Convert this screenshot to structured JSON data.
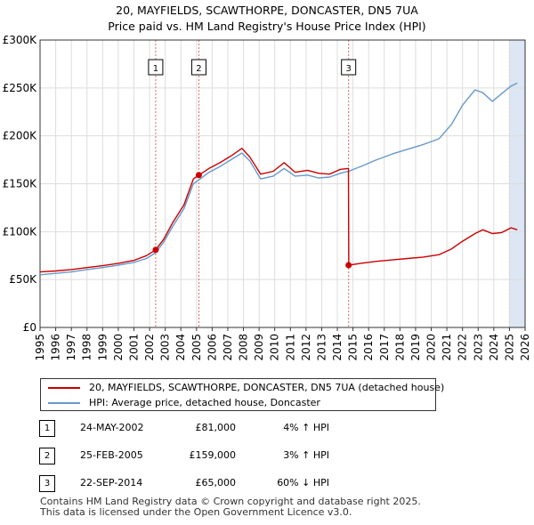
{
  "title_line1": "20, MAYFIELDS, SCAWTHORPE, DONCASTER, DN5 7UA",
  "title_line2": "Price paid vs. HM Land Registry's House Price Index (HPI)",
  "colors": {
    "price": "#cc0000",
    "hpi": "#6699cc",
    "grid": "#dddddd",
    "marker_line": "#e06666",
    "band": "#dde6f3"
  },
  "chart_data": {
    "type": "line",
    "title": "Price paid vs. HM Land Registry's House Price Index (HPI)",
    "xlabel": "",
    "ylabel": "",
    "xlim": [
      1995,
      2026
    ],
    "ylim": [
      0,
      300000
    ],
    "y_ticks": [
      {
        "value": 0,
        "label": "£0"
      },
      {
        "value": 50000,
        "label": "£50K"
      },
      {
        "value": 100000,
        "label": "£100K"
      },
      {
        "value": 150000,
        "label": "£150K"
      },
      {
        "value": 200000,
        "label": "£200K"
      },
      {
        "value": 250000,
        "label": "£250K"
      },
      {
        "value": 300000,
        "label": "£300K"
      }
    ],
    "x_ticks": [
      "1995",
      "1996",
      "1997",
      "1998",
      "1999",
      "2000",
      "2001",
      "2002",
      "2003",
      "2004",
      "2005",
      "2006",
      "2007",
      "2008",
      "2009",
      "2010",
      "2011",
      "2012",
      "2013",
      "2014",
      "2015",
      "2016",
      "2017",
      "2018",
      "2019",
      "2020",
      "2021",
      "2022",
      "2023",
      "2024",
      "2025",
      "2026"
    ],
    "series": [
      {
        "name": "20, MAYFIELDS, SCAWTHORPE, DONCASTER, DN5 7UA (detached house)",
        "color": "#cc0000",
        "points": [
          [
            1995.0,
            58000
          ],
          [
            1996.0,
            59000
          ],
          [
            1997.0,
            60500
          ],
          [
            1998.0,
            62500
          ],
          [
            1999.0,
            64500
          ],
          [
            2000.0,
            67000
          ],
          [
            2001.0,
            70000
          ],
          [
            2001.8,
            75000
          ],
          [
            2002.39,
            81000
          ],
          [
            2002.9,
            92000
          ],
          [
            2003.5,
            110000
          ],
          [
            2004.2,
            128000
          ],
          [
            2004.8,
            155000
          ],
          [
            2005.15,
            159000
          ],
          [
            2005.8,
            166000
          ],
          [
            2006.5,
            172000
          ],
          [
            2007.3,
            180000
          ],
          [
            2007.9,
            187000
          ],
          [
            2008.4,
            178000
          ],
          [
            2009.1,
            160000
          ],
          [
            2009.9,
            163000
          ],
          [
            2010.6,
            172000
          ],
          [
            2011.3,
            162000
          ],
          [
            2012.1,
            164000
          ],
          [
            2012.8,
            161000
          ],
          [
            2013.5,
            160000
          ],
          [
            2014.2,
            165000
          ],
          [
            2014.71,
            166000
          ],
          [
            2014.73,
            65000
          ],
          [
            2015.5,
            67000
          ],
          [
            2016.5,
            69000
          ],
          [
            2017.5,
            70500
          ],
          [
            2018.5,
            72000
          ],
          [
            2019.5,
            73500
          ],
          [
            2020.5,
            76000
          ],
          [
            2021.3,
            82000
          ],
          [
            2022.0,
            90000
          ],
          [
            2022.8,
            98000
          ],
          [
            2023.3,
            102000
          ],
          [
            2023.9,
            98000
          ],
          [
            2024.5,
            99000
          ],
          [
            2025.1,
            104000
          ],
          [
            2025.5,
            102000
          ]
        ]
      },
      {
        "name": "HPI: Average price, detached house, Doncaster",
        "color": "#6699cc",
        "points": [
          [
            1995.0,
            55000
          ],
          [
            1996.0,
            56500
          ],
          [
            1997.0,
            58000
          ],
          [
            1998.0,
            60500
          ],
          [
            1999.0,
            62500
          ],
          [
            2000.0,
            65000
          ],
          [
            2001.0,
            68000
          ],
          [
            2001.8,
            72000
          ],
          [
            2002.39,
            78000
          ],
          [
            2002.9,
            89000
          ],
          [
            2003.5,
            106000
          ],
          [
            2004.2,
            124000
          ],
          [
            2004.8,
            150000
          ],
          [
            2005.15,
            154000
          ],
          [
            2005.8,
            162000
          ],
          [
            2006.5,
            168000
          ],
          [
            2007.3,
            176000
          ],
          [
            2007.9,
            182000
          ],
          [
            2008.4,
            174000
          ],
          [
            2009.1,
            155000
          ],
          [
            2009.9,
            158000
          ],
          [
            2010.6,
            166000
          ],
          [
            2011.3,
            158000
          ],
          [
            2012.1,
            159000
          ],
          [
            2012.8,
            156000
          ],
          [
            2013.5,
            157000
          ],
          [
            2014.2,
            161000
          ],
          [
            2014.71,
            163000
          ],
          [
            2015.5,
            168000
          ],
          [
            2016.5,
            175000
          ],
          [
            2017.5,
            181000
          ],
          [
            2018.5,
            186000
          ],
          [
            2019.5,
            191000
          ],
          [
            2020.5,
            197000
          ],
          [
            2021.3,
            212000
          ],
          [
            2022.0,
            232000
          ],
          [
            2022.8,
            248000
          ],
          [
            2023.3,
            245000
          ],
          [
            2023.9,
            236000
          ],
          [
            2024.5,
            244000
          ],
          [
            2025.1,
            252000
          ],
          [
            2025.5,
            255000
          ]
        ]
      }
    ],
    "sale_markers": [
      {
        "label": "1",
        "x": 2002.39,
        "y": 81000
      },
      {
        "label": "2",
        "x": 2005.15,
        "y": 159000
      },
      {
        "label": "3",
        "x": 2014.72,
        "y": 65000
      }
    ],
    "shaded_from": 2025.0
  },
  "legend": {
    "price_label": "20, MAYFIELDS, SCAWTHORPE, DONCASTER, DN5 7UA (detached house)",
    "hpi_label": "HPI: Average price, detached house, Doncaster"
  },
  "sales": [
    {
      "num": "1",
      "date": "24-MAY-2002",
      "price": "£81,000",
      "hpi": "4% ↑ HPI"
    },
    {
      "num": "2",
      "date": "25-FEB-2005",
      "price": "£159,000",
      "hpi": "3% ↑ HPI"
    },
    {
      "num": "3",
      "date": "22-SEP-2014",
      "price": "£65,000",
      "hpi": "60% ↓ HPI"
    }
  ],
  "footer_line1": "Contains HM Land Registry data © Crown copyright and database right 2025.",
  "footer_line2": "This data is licensed under the Open Government Licence v3.0."
}
